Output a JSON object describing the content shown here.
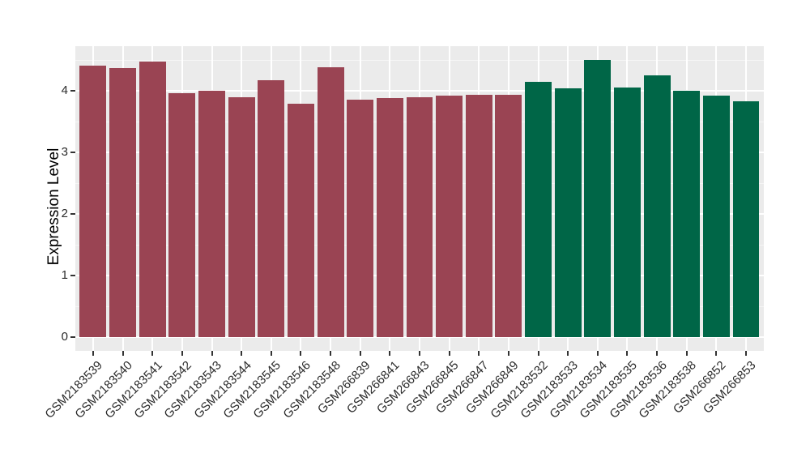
{
  "chart_data": {
    "type": "bar",
    "title": "",
    "xlabel": "",
    "ylabel": "Expression Level",
    "ylim": [
      0,
      4.74
    ],
    "yticks": [
      0,
      1,
      2,
      3,
      4
    ],
    "yticks_minor": [
      0.5,
      1.5,
      2.5,
      3.5,
      4.5
    ],
    "grid": "white major and minor gridlines on grey panel",
    "legend_position": "none",
    "panel_background": "#EBEBEB",
    "gridline_color": "#FFFFFF",
    "tick_color": "#333333",
    "label_color": "#2B2B2B",
    "x_label_rotation_deg": 45,
    "categories": [
      "GSM2183539",
      "GSM2183540",
      "GSM2183541",
      "GSM2183542",
      "GSM2183543",
      "GSM2183544",
      "GSM2183545",
      "GSM2183546",
      "GSM2183548",
      "GSM266839",
      "GSM266841",
      "GSM266843",
      "GSM266845",
      "GSM266847",
      "GSM266849",
      "GSM2183532",
      "GSM2183533",
      "GSM2183534",
      "GSM2183535",
      "GSM2183536",
      "GSM2183538",
      "GSM266852",
      "GSM266853"
    ],
    "values": [
      4.41,
      4.37,
      4.48,
      3.96,
      4.0,
      3.89,
      4.17,
      3.79,
      4.38,
      3.85,
      3.88,
      3.89,
      3.92,
      3.93,
      3.94,
      4.14,
      4.04,
      4.5,
      4.05,
      4.25,
      4.0,
      3.92,
      3.83
    ],
    "bar_group_index": [
      0,
      0,
      0,
      0,
      0,
      0,
      0,
      0,
      0,
      0,
      0,
      0,
      0,
      0,
      0,
      1,
      1,
      1,
      1,
      1,
      1,
      1,
      1
    ],
    "group_colors": [
      "#9A4453",
      "#006647"
    ]
  }
}
